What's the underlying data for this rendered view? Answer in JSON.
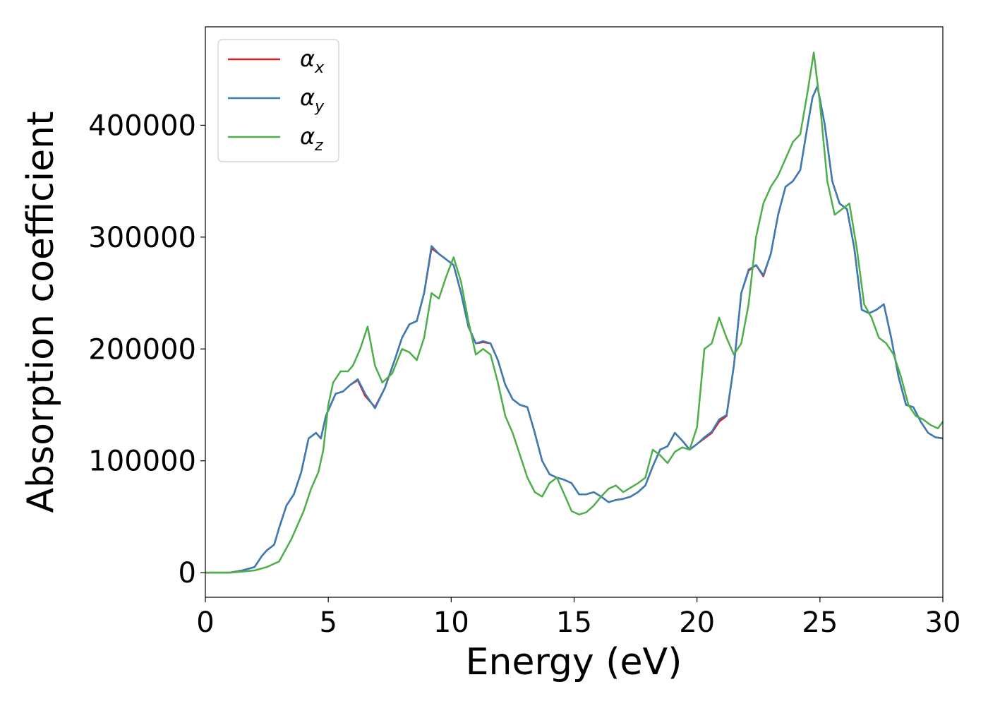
{
  "chart_data": {
    "type": "line",
    "xlabel": "Energy (eV)",
    "ylabel": "Absorption coefficient",
    "xlim": [
      0,
      30
    ],
    "ylim": [
      -22000,
      488000
    ],
    "xticks": [
      0,
      5,
      10,
      15,
      20,
      25,
      30
    ],
    "xtick_labels": [
      "0",
      "5",
      "10",
      "15",
      "20",
      "25",
      "30"
    ],
    "yticks": [
      0,
      100000,
      200000,
      300000,
      400000
    ],
    "ytick_labels": [
      "0",
      "100000",
      "200000",
      "300000",
      "400000"
    ],
    "grid": false,
    "legend_position": "top-left",
    "series": [
      {
        "name": "αx",
        "symbol": "α",
        "subscript": "x",
        "color": "#e41a1c",
        "x": [
          0,
          1,
          1.5,
          2,
          2.3,
          2.5,
          2.8,
          3.0,
          3.3,
          3.6,
          3.9,
          4.2,
          4.5,
          4.7,
          4.9,
          5.3,
          5.6,
          5.9,
          6.2,
          6.5,
          6.9,
          7.3,
          7.7,
          8.0,
          8.3,
          8.6,
          8.9,
          9.2,
          9.5,
          9.8,
          10.1,
          10.4,
          10.7,
          11.0,
          11.3,
          11.6,
          11.9,
          12.2,
          12.5,
          12.8,
          13.1,
          13.4,
          13.7,
          14.0,
          14.3,
          14.6,
          14.9,
          15.2,
          15.5,
          15.8,
          16.1,
          16.4,
          16.7,
          17.0,
          17.3,
          17.6,
          17.9,
          18.2,
          18.5,
          18.8,
          19.1,
          19.4,
          19.7,
          20.0,
          20.3,
          20.6,
          20.9,
          21.2,
          21.5,
          21.8,
          22.1,
          22.4,
          22.7,
          23.0,
          23.3,
          23.6,
          23.9,
          24.2,
          24.5,
          24.7,
          24.9,
          25.2,
          25.5,
          25.8,
          26.1,
          26.4,
          26.7,
          27.0,
          27.3,
          27.6,
          27.9,
          28.2,
          28.5,
          28.8,
          29.1,
          29.4,
          29.7,
          30.0
        ],
        "y": [
          0,
          0,
          2000,
          5000,
          15000,
          20000,
          25000,
          40000,
          60000,
          70000,
          90000,
          120000,
          125000,
          120000,
          140000,
          160000,
          162000,
          168000,
          172000,
          158000,
          148000,
          165000,
          190000,
          210000,
          222000,
          225000,
          250000,
          290000,
          285000,
          280000,
          275000,
          250000,
          220000,
          205000,
          206000,
          205000,
          190000,
          168000,
          155000,
          150000,
          148000,
          125000,
          100000,
          88000,
          85000,
          83000,
          80000,
          70000,
          70000,
          72000,
          68000,
          63000,
          65000,
          66000,
          68000,
          72000,
          78000,
          95000,
          110000,
          113000,
          125000,
          118000,
          110000,
          115000,
          120000,
          125000,
          135000,
          140000,
          185000,
          250000,
          270000,
          275000,
          265000,
          285000,
          320000,
          345000,
          350000,
          360000,
          400000,
          425000,
          435000,
          400000,
          350000,
          330000,
          325000,
          290000,
          235000,
          232000,
          235000,
          240000,
          210000,
          175000,
          150000,
          148000,
          135000,
          125000,
          121000,
          120000
        ],
        "line_width": 2.5
      },
      {
        "name": "αy",
        "symbol": "α",
        "subscript": "y",
        "color": "#377eb8",
        "x": [
          0,
          1,
          1.5,
          2,
          2.3,
          2.5,
          2.8,
          3.0,
          3.3,
          3.6,
          3.9,
          4.2,
          4.5,
          4.7,
          4.9,
          5.3,
          5.6,
          5.9,
          6.2,
          6.5,
          6.9,
          7.3,
          7.7,
          8.0,
          8.3,
          8.6,
          8.9,
          9.2,
          9.5,
          9.8,
          10.1,
          10.4,
          10.7,
          11.0,
          11.3,
          11.6,
          11.9,
          12.2,
          12.5,
          12.8,
          13.1,
          13.4,
          13.7,
          14.0,
          14.3,
          14.6,
          14.9,
          15.2,
          15.5,
          15.8,
          16.1,
          16.4,
          16.7,
          17.0,
          17.3,
          17.6,
          17.9,
          18.2,
          18.5,
          18.8,
          19.1,
          19.4,
          19.7,
          20.0,
          20.3,
          20.6,
          20.9,
          21.2,
          21.5,
          21.8,
          22.1,
          22.4,
          22.7,
          23.0,
          23.3,
          23.6,
          23.9,
          24.2,
          24.5,
          24.7,
          24.9,
          25.2,
          25.5,
          25.8,
          26.1,
          26.4,
          26.7,
          27.0,
          27.3,
          27.6,
          27.9,
          28.2,
          28.5,
          28.8,
          29.1,
          29.4,
          29.7,
          30.0
        ],
        "y": [
          0,
          0,
          2000,
          5000,
          15000,
          20000,
          25000,
          40000,
          60000,
          70000,
          90000,
          120000,
          125000,
          120000,
          140000,
          160000,
          162000,
          168000,
          173000,
          160000,
          147000,
          165000,
          190000,
          210000,
          222000,
          225000,
          250000,
          292000,
          285000,
          280000,
          275000,
          250000,
          220000,
          205000,
          207000,
          205000,
          190000,
          168000,
          155000,
          150000,
          148000,
          125000,
          100000,
          88000,
          85000,
          83000,
          80000,
          70000,
          70000,
          72000,
          68000,
          63000,
          65000,
          66000,
          68000,
          72000,
          78000,
          95000,
          110000,
          113000,
          125000,
          118000,
          110000,
          115000,
          121000,
          126000,
          137000,
          141000,
          185000,
          250000,
          271000,
          275000,
          266000,
          285000,
          320000,
          345000,
          350000,
          360000,
          400000,
          425000,
          435000,
          400000,
          350000,
          330000,
          325000,
          290000,
          235000,
          232000,
          235000,
          240000,
          210000,
          175000,
          150000,
          148000,
          135000,
          125000,
          121000,
          120000
        ],
        "line_width": 2.5
      },
      {
        "name": "αz",
        "symbol": "α",
        "subscript": "z",
        "color": "#4daf4a",
        "x": [
          0,
          1,
          1.5,
          2,
          2.5,
          3.0,
          3.5,
          4.0,
          4.3,
          4.6,
          4.8,
          5.0,
          5.2,
          5.5,
          5.8,
          6.0,
          6.3,
          6.6,
          6.9,
          7.2,
          7.6,
          8.0,
          8.3,
          8.6,
          8.9,
          9.2,
          9.5,
          9.8,
          10.1,
          10.4,
          10.7,
          11.0,
          11.3,
          11.6,
          11.9,
          12.2,
          12.5,
          12.8,
          13.1,
          13.4,
          13.7,
          14.0,
          14.3,
          14.6,
          14.9,
          15.2,
          15.5,
          15.8,
          16.1,
          16.4,
          16.7,
          17.0,
          17.3,
          17.6,
          17.9,
          18.2,
          18.5,
          18.8,
          19.1,
          19.4,
          19.7,
          20.0,
          20.3,
          20.6,
          20.9,
          21.2,
          21.5,
          21.8,
          22.1,
          22.4,
          22.7,
          23.0,
          23.3,
          23.6,
          23.9,
          24.2,
          24.5,
          24.75,
          25.0,
          25.3,
          25.6,
          25.9,
          26.2,
          26.5,
          26.8,
          27.1,
          27.4,
          27.7,
          28.0,
          28.3,
          28.6,
          28.9,
          29.2,
          29.5,
          29.8,
          30.0
        ],
        "y": [
          0,
          0,
          1000,
          2000,
          5000,
          10000,
          30000,
          55000,
          75000,
          90000,
          110000,
          150000,
          170000,
          180000,
          180000,
          185000,
          200000,
          220000,
          185000,
          170000,
          178000,
          200000,
          197000,
          190000,
          210000,
          250000,
          245000,
          265000,
          282000,
          260000,
          225000,
          195000,
          200000,
          195000,
          170000,
          140000,
          125000,
          105000,
          85000,
          72000,
          68000,
          80000,
          85000,
          70000,
          55000,
          52000,
          54000,
          60000,
          68000,
          75000,
          78000,
          72000,
          76000,
          80000,
          85000,
          110000,
          105000,
          98000,
          108000,
          112000,
          110000,
          130000,
          200000,
          205000,
          228000,
          210000,
          195000,
          205000,
          240000,
          300000,
          330000,
          345000,
          355000,
          370000,
          385000,
          392000,
          430000,
          465000,
          420000,
          350000,
          320000,
          325000,
          330000,
          290000,
          240000,
          228000,
          210000,
          205000,
          195000,
          175000,
          150000,
          140000,
          137000,
          132000,
          129000,
          135000
        ],
        "line_width": 2.5
      }
    ]
  }
}
